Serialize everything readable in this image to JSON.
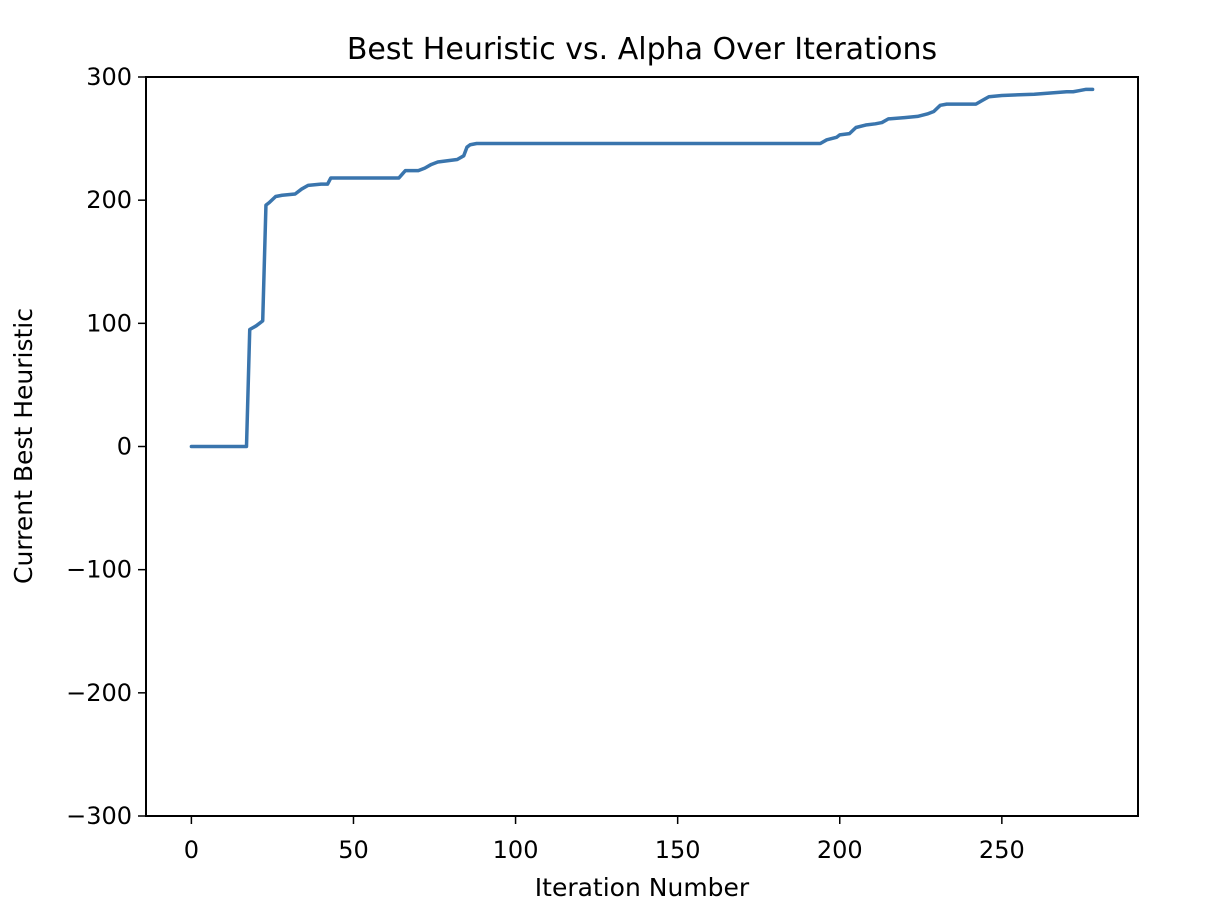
{
  "chart_data": {
    "type": "line",
    "title": "Best Heuristic vs. Alpha Over Iterations",
    "xlabel": "Iteration Number",
    "ylabel": "Current Best Heuristic",
    "xlim": [
      -14,
      292
    ],
    "ylim": [
      -300,
      300
    ],
    "x_ticks": [
      0,
      50,
      100,
      150,
      200,
      250
    ],
    "y_ticks": [
      -300,
      -200,
      -100,
      0,
      100,
      200,
      300
    ],
    "x_tick_labels": [
      "0",
      "50",
      "100",
      "150",
      "200",
      "250"
    ],
    "y_tick_labels": [
      "−300",
      "−200",
      "−100",
      "0",
      "100",
      "200",
      "300"
    ],
    "grid": false,
    "legend": "none",
    "series": [
      {
        "color": "#3a75ad",
        "x": [
          0,
          17,
          18,
          20,
          22,
          23,
          24,
          26,
          28,
          32,
          34,
          36,
          40,
          42,
          43,
          48,
          54,
          60,
          64,
          65,
          66,
          70,
          72,
          74,
          76,
          79,
          82,
          84,
          85,
          86,
          88,
          90,
          100,
          120,
          150,
          180,
          190,
          194,
          196,
          199,
          200,
          203,
          205,
          208,
          211,
          213,
          215,
          220,
          224,
          227,
          229,
          231,
          233,
          240,
          242,
          244,
          246,
          250,
          260,
          265,
          270,
          272,
          274,
          276,
          278
        ],
        "y": [
          0,
          0,
          95,
          98,
          102,
          196,
          198,
          203,
          204,
          205,
          209,
          212,
          213,
          213,
          218,
          218,
          218,
          218,
          218,
          221,
          224,
          224,
          226,
          229,
          231,
          232,
          233,
          236,
          243,
          245,
          246,
          246,
          246,
          246,
          246,
          246,
          246,
          246,
          249,
          251,
          253,
          254,
          259,
          261,
          262,
          263,
          266,
          267,
          268,
          270,
          272,
          277,
          278,
          278,
          278,
          281,
          284,
          285,
          286,
          287,
          288,
          288,
          289,
          290,
          290
        ]
      }
    ]
  }
}
